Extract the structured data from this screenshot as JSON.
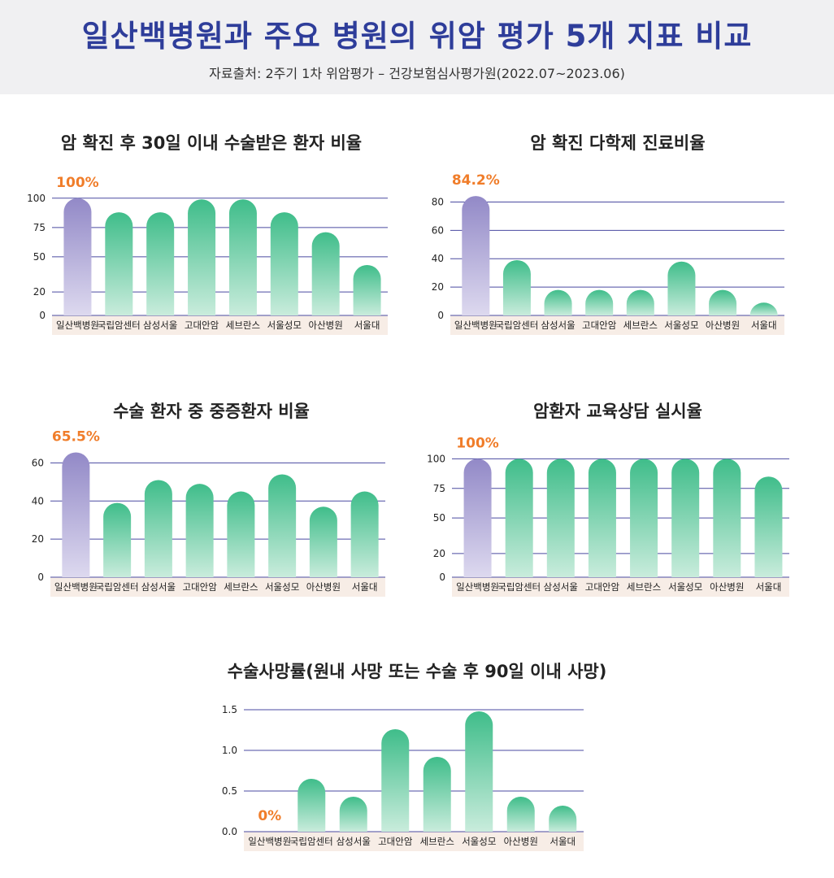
{
  "header": {
    "title": "일산백병원과 주요 병원의 위암 평가 5개 지표 비교",
    "source": "자료출처: 2주기 1차 위암평가 – 건강보험심사평가원(2022.07~2023.06)"
  },
  "colors": {
    "highlight_top": "#9289c7",
    "highlight_bottom": "#ddd9ef",
    "bar_top": "#3fbd8a",
    "bar_bottom": "#c9ecdc",
    "gridline": "#4a4aa0",
    "label_band": "#f7ede6",
    "callout": "#f07d2a"
  },
  "chart_data": [
    {
      "type": "bar",
      "title": "암 확진 후 30일 이내 수술받은 환자 비율",
      "categories": [
        "일산백병원",
        "국립암센터",
        "삼성서울",
        "고대안암",
        "세브란스",
        "서울성모",
        "아산병원",
        "서울대"
      ],
      "values": [
        100,
        88,
        88,
        99,
        99,
        88,
        71,
        43
      ],
      "ylim": [
        0,
        104
      ],
      "ytick_values": [
        0,
        20,
        50,
        75,
        100
      ],
      "ytick_labels": [
        "0",
        "20",
        "50",
        "75",
        "100"
      ],
      "callout": "100%"
    },
    {
      "type": "bar",
      "title": "암 확진 다학제 진료비율",
      "categories": [
        "일산백병원",
        "국립암센터",
        "삼성서울",
        "고대안암",
        "세브란스",
        "서울성모",
        "아산병원",
        "서울대"
      ],
      "values": [
        84.2,
        39,
        18,
        18,
        18,
        38,
        18,
        9
      ],
      "ylim": [
        0,
        86
      ],
      "ytick_values": [
        0,
        20,
        40,
        60,
        80
      ],
      "ytick_labels": [
        "0",
        "20",
        "40",
        "60",
        "80"
      ],
      "callout": "84.2%"
    },
    {
      "type": "bar",
      "title": "수술 환자 중 중증환자 비율",
      "categories": [
        "일산백병원",
        "국립암센터",
        "삼성서울",
        "고대안암",
        "세브란스",
        "서울성모",
        "아산병원",
        "서울대"
      ],
      "values": [
        65.5,
        39,
        51,
        49,
        45,
        54,
        37,
        45
      ],
      "ylim": [
        0,
        64
      ],
      "ytick_values": [
        0,
        20,
        40,
        60
      ],
      "ytick_labels": [
        "0",
        "20",
        "40",
        "60"
      ],
      "callout": "65.5%"
    },
    {
      "type": "bar",
      "title": "암환자 교육상담 실시율",
      "categories": [
        "일산백병원",
        "국립암센터",
        "삼성서울",
        "고대안암",
        "세브란스",
        "서울성모",
        "아산병원",
        "서울대"
      ],
      "values": [
        100,
        100,
        100,
        100,
        100,
        100,
        100,
        85
      ],
      "ylim": [
        0,
        103
      ],
      "ytick_values": [
        0,
        20,
        50,
        75,
        100
      ],
      "ytick_labels": [
        "0",
        "20",
        "50",
        "75",
        "100"
      ],
      "callout": "100%"
    },
    {
      "type": "bar",
      "title": "수술사망률(원내 사망 또는 수술 후 90일 이내 사망)",
      "categories": [
        "일산백병원",
        "국립암센터",
        "삼성서울",
        "고대안암",
        "세브란스",
        "서울성모",
        "아산병원",
        "서울대"
      ],
      "values": [
        0,
        0.65,
        0.43,
        1.26,
        0.92,
        1.48,
        0.43,
        0.32
      ],
      "ylim": [
        0,
        1.5
      ],
      "ytick_values": [
        0,
        0.5,
        1.0,
        1.5
      ],
      "ytick_labels": [
        "0.0",
        "0.5",
        "1.0",
        "1.5"
      ],
      "callout": "0%"
    }
  ]
}
